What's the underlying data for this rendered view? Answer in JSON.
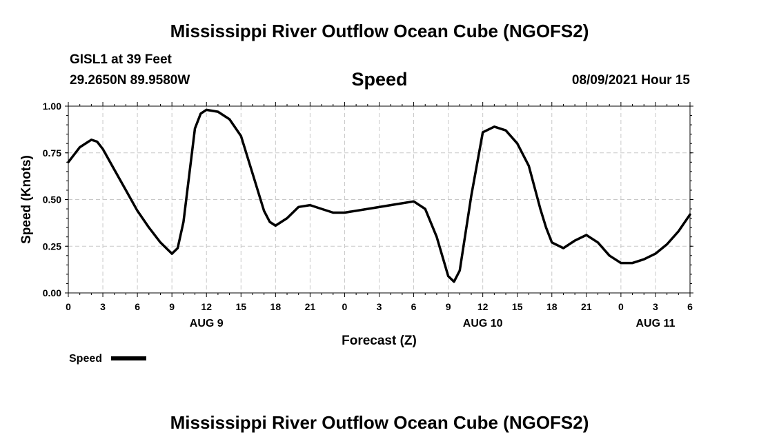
{
  "header": {
    "title": "Mississippi River Outflow Ocean Cube (NGOFS2)",
    "station": "GISL1 at 39 Feet",
    "coords": "29.2650N  89.9580W",
    "variable": "Speed",
    "datetime": "08/09/2021 Hour 15"
  },
  "footer": {
    "title": "Mississippi River Outflow Ocean Cube (NGOFS2)"
  },
  "chart_data": {
    "type": "line",
    "title": "Speed",
    "xlabel": "Forecast (Z)",
    "ylabel": "Speed (Knots)",
    "ylim": [
      0,
      1
    ],
    "xlim": [
      0,
      54
    ],
    "x_unit": "hours from 08/09/2021 00Z",
    "y_ticks": [
      "0.00",
      "0.25",
      "0.50",
      "0.75",
      "1.00"
    ],
    "x_ticks": [
      "0",
      "3",
      "6",
      "9",
      "12",
      "15",
      "18",
      "21",
      "0",
      "3",
      "6",
      "9",
      "12",
      "15",
      "18",
      "21",
      "0",
      "3",
      "6"
    ],
    "date_labels": [
      {
        "label": "AUG 9",
        "hour": 12
      },
      {
        "label": "AUG 10",
        "hour": 36
      },
      {
        "label": "AUG 11",
        "hour": 51
      }
    ],
    "grid": true,
    "line_color": "#000000",
    "legend": {
      "label": "Speed",
      "placement": "bottom-left"
    },
    "series": [
      {
        "name": "Speed",
        "x": [
          0,
          1,
          2,
          2.5,
          3,
          4,
          5,
          6,
          7,
          8,
          9,
          9.5,
          10,
          11,
          11.5,
          12,
          13,
          14,
          15,
          16,
          17,
          17.5,
          18,
          19,
          20,
          21,
          22,
          23,
          24,
          26,
          28,
          30,
          31,
          32,
          33,
          33.5,
          34,
          35,
          36,
          37,
          38,
          39,
          40,
          41,
          41.5,
          42,
          43,
          44,
          45,
          46,
          47,
          48,
          49,
          50,
          51,
          52,
          53,
          54
        ],
        "y": [
          0.7,
          0.78,
          0.82,
          0.81,
          0.77,
          0.66,
          0.55,
          0.44,
          0.35,
          0.27,
          0.21,
          0.24,
          0.38,
          0.88,
          0.96,
          0.98,
          0.97,
          0.93,
          0.84,
          0.64,
          0.44,
          0.38,
          0.36,
          0.4,
          0.46,
          0.47,
          0.45,
          0.43,
          0.43,
          0.45,
          0.47,
          0.49,
          0.45,
          0.3,
          0.09,
          0.06,
          0.12,
          0.52,
          0.86,
          0.89,
          0.87,
          0.8,
          0.68,
          0.45,
          0.35,
          0.27,
          0.24,
          0.28,
          0.31,
          0.27,
          0.2,
          0.16,
          0.16,
          0.18,
          0.21,
          0.26,
          0.33,
          0.42
        ]
      }
    ]
  }
}
